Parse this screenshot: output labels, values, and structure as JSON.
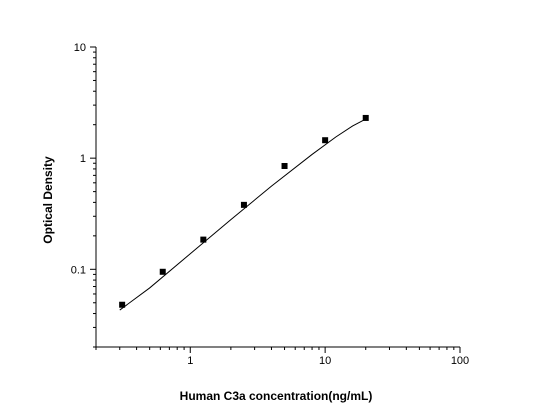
{
  "chart_data": {
    "type": "scatter",
    "title": "",
    "xlabel": "Human C3a concentration(ng/mL)",
    "ylabel": "Optical Density",
    "x_scale": "log",
    "y_scale": "log",
    "xlim": [
      0.2,
      100
    ],
    "ylim": [
      0.02,
      10
    ],
    "x_ticks": [
      1,
      10,
      100
    ],
    "x_tick_labels": [
      "1",
      "10",
      "100"
    ],
    "y_ticks": [
      0.1,
      1,
      10
    ],
    "y_tick_labels": [
      "0.1",
      "1",
      "10"
    ],
    "grid": false,
    "legend": false,
    "series": [
      {
        "x": [
          0.3125,
          0.625,
          1.25,
          2.5,
          5,
          10,
          20
        ],
        "y": [
          0.048,
          0.095,
          0.185,
          0.38,
          0.85,
          1.45,
          2.3
        ]
      }
    ],
    "fit_curve": {
      "type": "line",
      "x": [
        0.3,
        0.5,
        1,
        2,
        4,
        8,
        12,
        16,
        20
      ],
      "y": [
        0.043,
        0.068,
        0.138,
        0.28,
        0.56,
        1.08,
        1.55,
        1.95,
        2.25
      ]
    },
    "colors": {
      "marker": "#000000",
      "line": "#000000",
      "axis": "#000000"
    }
  }
}
